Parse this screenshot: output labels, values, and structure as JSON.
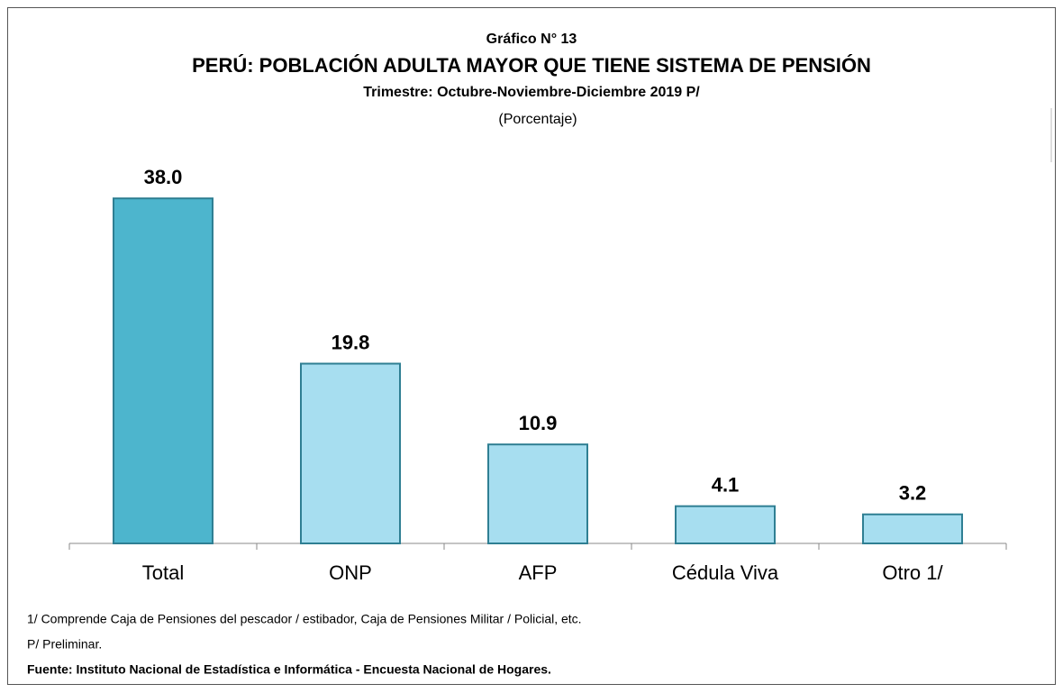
{
  "chart_data": {
    "type": "bar",
    "kicker": "Gráfico N° 13",
    "title": "PERÚ: POBLACIÓN ADULTA MAYOR QUE TIENE SISTEMA DE PENSIÓN",
    "subtitle": "Trimestre: Octubre-Noviembre-Diciembre 2019 P/",
    "unit_label": "(Porcentaje)",
    "categories": [
      "Total",
      "ONP",
      "AFP",
      "Cédula Viva",
      "Otro 1/"
    ],
    "values": [
      38.0,
      19.8,
      10.9,
      4.1,
      3.2
    ],
    "value_labels": [
      "38.0",
      "19.8",
      "10.9",
      "4.1",
      "3.2"
    ],
    "colors": [
      "#4db5cd",
      "#a7def0",
      "#a7def0",
      "#a7def0",
      "#a7def0"
    ],
    "ylim": [
      0,
      40
    ],
    "notes": [
      "1/ Comprende Caja de Pensiones del pescador / estibador, Caja de Pensiones Militar / Policial, etc.",
      "P/ Preliminar."
    ],
    "source": "Fuente: Instituto Nacional de Estadística e Informática - Encuesta Nacional de Hogares."
  }
}
